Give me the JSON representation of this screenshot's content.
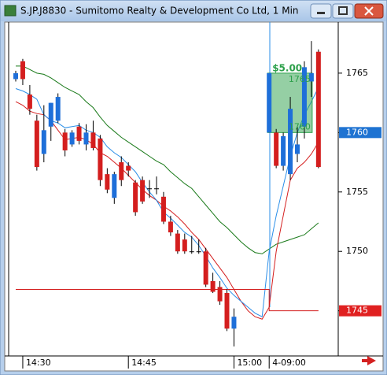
{
  "window": {
    "title": "S.JP.J8830 - Sumitomo Realty & Development Co Ltd, 1 Min"
  },
  "chart_data": {
    "type": "candlestick",
    "categories": [
      null,
      "14:30",
      null,
      null,
      null,
      null,
      null,
      null,
      null,
      null,
      null,
      null,
      null,
      null,
      null,
      null,
      "14:45",
      null,
      null,
      null,
      null,
      null,
      null,
      null,
      null,
      null,
      null,
      null,
      null,
      null,
      null,
      "15:00",
      null,
      null,
      null,
      null,
      "4-09:00",
      null,
      null,
      null,
      null,
      null,
      null,
      null
    ],
    "open": [
      1764.5,
      1766,
      1763.2,
      1761,
      1758.2,
      1760.5,
      1761,
      1760,
      1759,
      1760.5,
      1759,
      1760,
      1759.5,
      1756.5,
      1754.5,
      1757.5,
      1757.2,
      1755.8,
      1756,
      1755.3,
      1755.3,
      1754.6,
      1752.5,
      1751.5,
      1751,
      1750,
      1750,
      1750,
      1747.5,
      1747,
      1746.5,
      1743.5,
      null,
      null,
      null,
      null,
      1760,
      1760,
      1757.2,
      1756.5,
      1758.2,
      1760.5,
      1764.3,
      1766.8
    ],
    "high": [
      1765.2,
      1766.2,
      1764,
      1761.5,
      1762.3,
      1762.5,
      1763.3,
      1760.3,
      1760.2,
      1760.8,
      1760.7,
      1761,
      1759.8,
      1757,
      1756.7,
      1758,
      1757.5,
      1756,
      1756.3,
      1756,
      1756.3,
      1755,
      1753,
      1751.8,
      1751.5,
      1751.3,
      1751,
      1750.3,
      1748.2,
      1747.5,
      1746.8,
      1745.2,
      null,
      null,
      null,
      null,
      1765,
      1760.3,
      1760,
      1763,
      1760.5,
      1766,
      1767.7,
      1767
    ],
    "low": [
      1764.3,
      1764,
      1761.5,
      1756.8,
      1757.5,
      1759.3,
      1760.8,
      1758,
      1758.8,
      1759,
      1758.5,
      1758.5,
      1755.5,
      1754.9,
      1754,
      1755.5,
      1756.3,
      1753,
      1754,
      1754.5,
      1754.8,
      1752.3,
      1751.3,
      1749.8,
      1749.8,
      1749.8,
      1749.8,
      1747,
      1746.5,
      1745.5,
      1743.3,
      1742,
      null,
      null,
      null,
      null,
      1760,
      1757,
      1756.8,
      1756,
      1757.5,
      1759.5,
      1763,
      1757
    ],
    "close": [
      1765,
      1764.5,
      1762,
      1757.1,
      1760.2,
      1762.5,
      1763,
      1758.5,
      1760,
      1759.3,
      1760,
      1758.7,
      1756,
      1755.2,
      1756.5,
      1756,
      1756.8,
      1753.3,
      1754.2,
      1755.3,
      1755.3,
      1752.5,
      1751.6,
      1750,
      1750,
      1750,
      1750,
      1747.2,
      1746.6,
      1745.8,
      1743.5,
      1744.5,
      null,
      null,
      null,
      null,
      1765,
      1757.2,
      1759.7,
      1762,
      1759,
      1765.5,
      1765,
      1757.1
    ],
    "up_color": "#1e6fd9",
    "down_color": "#d41e1e",
    "flat_color": "#000000",
    "overlays": [
      {
        "color": "#1a7a1a",
        "values": [
          1765.6,
          1765.6,
          1765.3,
          1765.0,
          1764.9,
          1764.6,
          1764.2,
          1763.8,
          1763.5,
          1763.2,
          1762.6,
          1762.1,
          1761.3,
          1760.6,
          1760.1,
          1759.6,
          1759.2,
          1758.8,
          1758.4,
          1758.0,
          1757.6,
          1757.3,
          1756.7,
          1756.2,
          1755.7,
          1755.3,
          1754.6,
          1753.9,
          1753.2,
          1752.5,
          1752.0,
          1751.4,
          1750.8,
          1750.3,
          1749.9,
          1749.8,
          1750.2,
          1750.6,
          1750.8,
          1751.0,
          1751.2,
          1751.4,
          1751.9,
          1752.4
        ]
      },
      {
        "color": "#d41e1e",
        "values": [
          1762.6,
          1762.3,
          1761.8,
          1761.6,
          1761.5,
          1761.0,
          1760.2,
          1759.4,
          1759.5,
          1759.6,
          1759.4,
          1759.0,
          1758.3,
          1758.0,
          1757.5,
          1757.0,
          1756.4,
          1755.8,
          1755.2,
          1754.7,
          1754.3,
          1753.8,
          1753.4,
          1752.9,
          1752.3,
          1751.6,
          1751.0,
          1750.2,
          1749.4,
          1748.6,
          1747.8,
          1746.8,
          1745.8,
          1745.0,
          1744.5,
          1744.3,
          1745.3,
          1750,
          1753,
          1756,
          1757,
          1757.5,
          1758.2,
          1759.2
        ]
      },
      {
        "color": "#2a8ee8",
        "values": [
          1763.7,
          1763.5,
          1763.2,
          1762.8,
          1761.5,
          1761,
          1760.8,
          1760.4,
          1760.5,
          1760.6,
          1760.2,
          1760,
          1759.6,
          1758.8,
          1758.3,
          1757.9,
          1757.3,
          1756.7,
          1755.8,
          1755.0,
          1754.3,
          1753.3,
          1752.8,
          1752.2,
          1751.6,
          1751.2,
          1750.5,
          1749.6,
          1748.6,
          1747.8,
          1746.9,
          1746.3,
          1745.8,
          1745.3,
          1744.8,
          1744.5,
          1750,
          1753,
          1755.5,
          1758,
          1760,
          1761.5,
          1762.6,
          1763.8
        ]
      },
      {
        "color": "#d41e1e",
        "step": true,
        "values": [
          1746.8,
          1746.8,
          1746.8,
          1746.8,
          1746.8,
          1746.8,
          1746.8,
          1746.8,
          1746.8,
          1746.8,
          1746.8,
          1746.8,
          1746.8,
          1746.8,
          1746.8,
          1746.8,
          1746.8,
          1746.8,
          1746.8,
          1746.8,
          1746.8,
          1746.8,
          1746.8,
          1746.8,
          1746.8,
          1746.8,
          1746.8,
          1746.8,
          1746.8,
          1746.8,
          1746.8,
          1746.8,
          1746.8,
          1746.8,
          1746.8,
          1746.8,
          1745,
          1745,
          1745,
          1745,
          1745,
          1745,
          1745,
          1745
        ]
      }
    ],
    "trade": {
      "label": "$5.00",
      "top": 1765,
      "bottom": 1760,
      "color": "#2ca04a"
    },
    "price_markers": [
      {
        "value": 1760,
        "color": "#1e73d2"
      },
      {
        "value": 1745,
        "color": "#e02020"
      }
    ],
    "ylim": [
      1741.2,
      1769.3
    ],
    "yticks": [
      1745,
      1750,
      1755,
      1760,
      1765
    ]
  }
}
